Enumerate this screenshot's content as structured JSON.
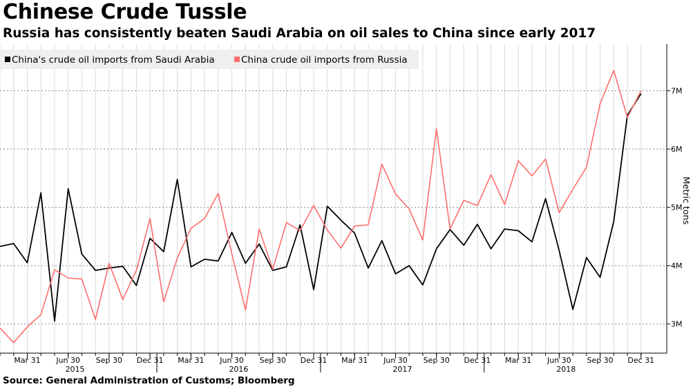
{
  "chart_data": {
    "type": "line",
    "title": "Chinese Crude Tussle",
    "subtitle": "Russia has consistently beaten Saudi Arabia on oil sales to China since early 2017",
    "source": "Source:  General Administration of Customs; Bloomberg",
    "ylabel": "Metric tons",
    "ylim": [
      2.5,
      7.8
    ],
    "y_ticks": [
      {
        "value": 3,
        "label": "3M"
      },
      {
        "value": 4,
        "label": "4M"
      },
      {
        "value": 5,
        "label": "5M"
      },
      {
        "value": 6,
        "label": "6M"
      },
      {
        "value": 7,
        "label": "7M"
      }
    ],
    "x": [
      "2015-01",
      "2015-02",
      "2015-03",
      "2015-04",
      "2015-05",
      "2015-06",
      "2015-07",
      "2015-08",
      "2015-09",
      "2015-10",
      "2015-11",
      "2015-12",
      "2016-01",
      "2016-02",
      "2016-03",
      "2016-04",
      "2016-05",
      "2016-06",
      "2016-07",
      "2016-08",
      "2016-09",
      "2016-10",
      "2016-11",
      "2016-12",
      "2017-01",
      "2017-02",
      "2017-03",
      "2017-04",
      "2017-05",
      "2017-06",
      "2017-07",
      "2017-08",
      "2017-09",
      "2017-10",
      "2017-11",
      "2017-12",
      "2018-01",
      "2018-02",
      "2018-03",
      "2018-04",
      "2018-05",
      "2018-06",
      "2018-07",
      "2018-08",
      "2018-09",
      "2018-10",
      "2018-11",
      "2018-12"
    ],
    "x_ticks": [
      "Mar 31",
      "Jun 30",
      "Sep 30",
      "Dec 31",
      "Mar 31",
      "Jun 30",
      "Sep 30",
      "Dec 31",
      "Mar 31",
      "Jun 30",
      "Sep 30",
      "Dec 31",
      "Mar 31",
      "Jun 30",
      "Sep 30",
      "Dec 31"
    ],
    "x_tick_months": [
      "2015-03",
      "2015-06",
      "2015-09",
      "2015-12",
      "2016-03",
      "2016-06",
      "2016-09",
      "2016-12",
      "2017-03",
      "2017-06",
      "2017-09",
      "2017-12",
      "2018-03",
      "2018-06",
      "2018-09",
      "2018-12"
    ],
    "years": [
      "2015",
      "2016",
      "2017",
      "2018"
    ],
    "grid": true,
    "legend": "top-left",
    "series": [
      {
        "name": "China's crude oil imports from Saudi Arabia",
        "color": "#000000",
        "values": [
          4.33,
          4.38,
          4.05,
          5.25,
          3.05,
          5.32,
          4.2,
          3.92,
          3.96,
          3.99,
          3.66,
          4.47,
          4.24,
          5.48,
          3.98,
          4.11,
          4.08,
          4.57,
          4.04,
          4.37,
          3.92,
          3.98,
          4.7,
          3.59,
          5.02,
          4.78,
          4.56,
          3.96,
          4.43,
          3.86,
          4.0,
          3.67,
          4.29,
          4.62,
          4.35,
          4.71,
          4.29,
          4.63,
          4.6,
          4.41,
          5.15,
          4.26,
          3.25,
          4.14,
          3.8,
          4.76,
          6.58,
          6.95
        ]
      },
      {
        "name": "China crude oil imports from Russia",
        "color": "#ff6d6d",
        "values": [
          2.93,
          2.68,
          2.95,
          3.16,
          3.93,
          3.79,
          3.77,
          3.08,
          4.04,
          3.42,
          3.92,
          4.81,
          3.38,
          4.13,
          4.64,
          4.81,
          5.24,
          4.2,
          3.24,
          4.63,
          3.94,
          4.74,
          4.6,
          5.03,
          4.61,
          4.3,
          4.68,
          4.7,
          5.74,
          5.23,
          4.97,
          4.44,
          6.35,
          4.63,
          5.12,
          5.03,
          5.56,
          5.05,
          5.8,
          5.54,
          5.83,
          4.91,
          5.31,
          5.69,
          6.78,
          7.35,
          6.54,
          7.0
        ]
      }
    ]
  }
}
